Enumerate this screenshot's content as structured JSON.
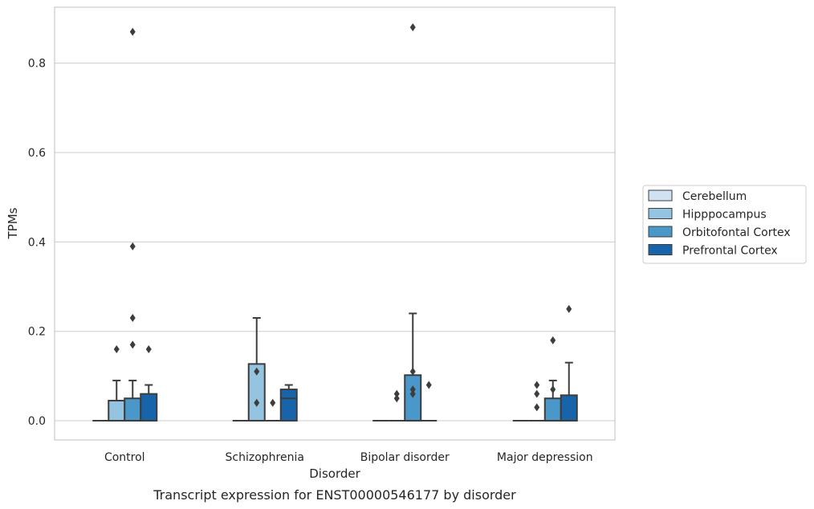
{
  "chart_data": {
    "type": "box",
    "caption": "Transcript expression for ENST00000546177 by disorder",
    "xlabel": "Disorder",
    "ylabel": "TPMs",
    "ylim": [
      -0.043,
      0.925
    ],
    "yticks": [
      0.0,
      0.2,
      0.4,
      0.6,
      0.8
    ],
    "ytick_labels": [
      "0.0",
      "0.2",
      "0.4",
      "0.6",
      "0.8"
    ],
    "grid": "horizontal",
    "legend_position": "right",
    "categories": [
      "Control",
      "Schizophrenia",
      "Bipolar disorder",
      "Major depression"
    ],
    "series": [
      {
        "name": "Cerebellum",
        "color": "#d0e1f2",
        "boxes": [
          {
            "q1": 0,
            "median": 0,
            "q3": 0,
            "whisker_low": 0,
            "whisker_high": 0,
            "outliers": []
          },
          {
            "q1": 0,
            "median": 0,
            "q3": 0,
            "whisker_low": 0,
            "whisker_high": 0,
            "outliers": []
          },
          {
            "q1": 0,
            "median": 0,
            "q3": 0,
            "whisker_low": 0,
            "whisker_high": 0,
            "outliers": []
          },
          {
            "q1": 0,
            "median": 0,
            "q3": 0,
            "whisker_low": 0,
            "whisker_high": 0,
            "outliers": []
          }
        ]
      },
      {
        "name": "Hipppocampus",
        "color": "#94c4df",
        "boxes": [
          {
            "q1": 0,
            "median": 0,
            "q3": 0.045,
            "whisker_low": 0,
            "whisker_high": 0.09,
            "outliers": [
              0.16
            ]
          },
          {
            "q1": 0,
            "median": 0,
            "q3": 0.127,
            "whisker_low": 0,
            "whisker_high": 0.23,
            "outliers": [
              0.11,
              0.04
            ]
          },
          {
            "q1": 0,
            "median": 0,
            "q3": 0,
            "whisker_low": 0,
            "whisker_high": 0,
            "outliers": [
              0.06,
              0.05
            ]
          },
          {
            "q1": 0,
            "median": 0,
            "q3": 0,
            "whisker_low": 0,
            "whisker_high": 0,
            "outliers": [
              0.08,
              0.06,
              0.03
            ]
          }
        ]
      },
      {
        "name": "Orbitofontal Cortex",
        "color": "#4a98c9",
        "boxes": [
          {
            "q1": 0,
            "median": 0,
            "q3": 0.05,
            "whisker_low": 0,
            "whisker_high": 0.09,
            "outliers": [
              0.87,
              0.39,
              0.23,
              0.17
            ]
          },
          {
            "q1": 0,
            "median": 0,
            "q3": 0,
            "whisker_low": 0,
            "whisker_high": 0,
            "outliers": [
              0.04
            ]
          },
          {
            "q1": 0,
            "median": 0,
            "q3": 0.102,
            "whisker_low": 0,
            "whisker_high": 0.24,
            "outliers": [
              0.88,
              0.11,
              0.07,
              0.06
            ]
          },
          {
            "q1": 0,
            "median": 0,
            "q3": 0.05,
            "whisker_low": 0,
            "whisker_high": 0.09,
            "outliers": [
              0.18,
              0.07
            ]
          }
        ]
      },
      {
        "name": "Prefrontal Cortex",
        "color": "#1764ab",
        "boxes": [
          {
            "q1": 0,
            "median": 0,
            "q3": 0.06,
            "whisker_low": 0,
            "whisker_high": 0.08,
            "outliers": [
              0.16
            ]
          },
          {
            "q1": 0,
            "median": 0.05,
            "q3": 0.07,
            "whisker_low": 0,
            "whisker_high": 0.08,
            "outliers": []
          },
          {
            "q1": 0,
            "median": 0,
            "q3": 0,
            "whisker_low": 0,
            "whisker_high": 0,
            "outliers": [
              0.08
            ]
          },
          {
            "q1": 0,
            "median": 0,
            "q3": 0.057,
            "whisker_low": 0,
            "whisker_high": 0.13,
            "outliers": [
              0.25
            ]
          }
        ]
      }
    ]
  }
}
